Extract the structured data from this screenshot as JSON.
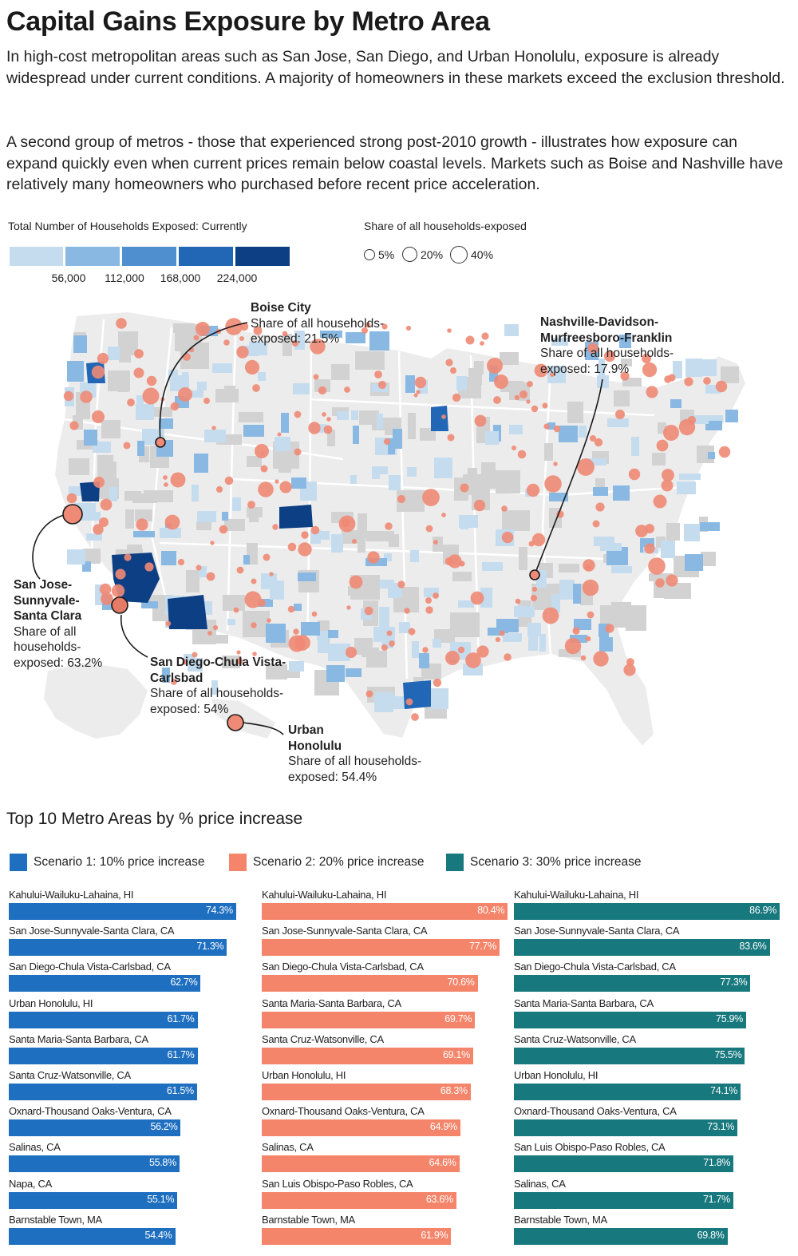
{
  "title": "Capital Gains Exposure by Metro Area",
  "intro": [
    "In high-cost metropolitan areas such as San Jose, San Diego, and Urban Honolulu, exposure is already widespread under current conditions. A majority of homeowners in these markets exceed the exclusion threshold.",
    "A second group of metros - those that experienced strong post-2010 growth - illustrates how exposure can expand quickly even when current prices remain below coastal levels. Markets such as Boise and Nashville have relatively many homeowners who purchased before recent price acceleration."
  ],
  "colors": {
    "scale": [
      "#c5dcef",
      "#89b9e2",
      "#4f8fcf",
      "#2266b6",
      "#0d3f85"
    ],
    "bubble": "#ef8a76",
    "scenario1": "#1f6fc0",
    "scenario2": "#f4856a",
    "scenario3": "#17787e",
    "land": "#f0f0f0",
    "county_gray": "#d2d2d2"
  },
  "map_legend": {
    "color_title": "Total Number of Households Exposed: Currently",
    "color_ticks": [
      "56,000",
      "112,000",
      "168,000",
      "224,000"
    ],
    "size_title": "Share of all households-exposed",
    "size_labels": [
      "5%",
      "20%",
      "40%"
    ]
  },
  "annotations": {
    "boise": {
      "name": "Boise City",
      "label": "Share of all households-exposed: 21.5%"
    },
    "nashville": {
      "name": "Nashville-Davidson-Murfreesboro-Franklin",
      "label": "Share of all households-exposed: 17.9%"
    },
    "sanjose": {
      "name": "San Jose-Sunnyvale-Santa Clara",
      "label": "Share of all households-exposed: 63.2%"
    },
    "sandiego": {
      "name": "San Diego-Chula Vista-Carlsbad",
      "label": "Share of all households-exposed: 54%"
    },
    "honolulu": {
      "name": "Urban Honolulu",
      "label": "Share of all households-exposed: 54.4%"
    }
  },
  "chart_data": {
    "type": "bar",
    "orientation": "horizontal",
    "title": "Top 10 Metro Areas by % price increase",
    "xlim": [
      0,
      90
    ],
    "series": [
      {
        "name": "Scenario 1: 10% price increase",
        "categories": [
          "Kahului-Wailuku-Lahaina, HI",
          "San Jose-Sunnyvale-Santa Clara, CA",
          "San Diego-Chula Vista-Carlsbad, CA",
          "Urban Honolulu, HI",
          "Santa Maria-Santa Barbara, CA",
          "Santa Cruz-Watsonville, CA",
          "Oxnard-Thousand Oaks-Ventura, CA",
          "Salinas, CA",
          "Napa, CA",
          "Barnstable Town, MA"
        ],
        "values": [
          74.3,
          71.3,
          62.7,
          61.7,
          61.7,
          61.5,
          56.2,
          55.8,
          55.1,
          54.4
        ],
        "labels": [
          "74.3%",
          "71.3%",
          "62.7%",
          "61.7%",
          "61.7%",
          "61.5%",
          "56.2%",
          "55.8%",
          "55.1%",
          "54.4%"
        ]
      },
      {
        "name": "Scenario 2: 20% price increase",
        "categories": [
          "Kahului-Wailuku-Lahaina, HI",
          "San Jose-Sunnyvale-Santa Clara, CA",
          "San Diego-Chula Vista-Carlsbad, CA",
          "Santa Maria-Santa Barbara, CA",
          "Santa Cruz-Watsonville, CA",
          "Urban Honolulu, HI",
          "Oxnard-Thousand Oaks-Ventura, CA",
          "Salinas, CA",
          "San Luis Obispo-Paso Robles, CA",
          "Barnstable Town, MA"
        ],
        "values": [
          80.4,
          77.7,
          70.6,
          69.7,
          69.1,
          68.3,
          64.9,
          64.6,
          63.6,
          61.9
        ],
        "labels": [
          "80.4%",
          "77.7%",
          "70.6%",
          "69.7%",
          "69.1%",
          "68.3%",
          "64.9%",
          "64.6%",
          "63.6%",
          "61.9%"
        ]
      },
      {
        "name": "Scenario 3: 30% price increase",
        "categories": [
          "Kahului-Wailuku-Lahaina, HI",
          "San Jose-Sunnyvale-Santa Clara, CA",
          "San Diego-Chula Vista-Carlsbad, CA",
          "Santa Maria-Santa Barbara, CA",
          "Santa Cruz-Watsonville, CA",
          "Urban Honolulu, HI",
          "Oxnard-Thousand Oaks-Ventura, CA",
          "San Luis Obispo-Paso Robles, CA",
          "Salinas, CA",
          "Barnstable Town, MA"
        ],
        "values": [
          86.9,
          83.6,
          77.3,
          75.9,
          75.5,
          74.1,
          73.1,
          71.8,
          71.7,
          69.8
        ],
        "labels": [
          "86.9%",
          "83.6%",
          "77.3%",
          "75.9%",
          "75.5%",
          "74.1%",
          "73.1%",
          "71.8%",
          "71.7%",
          "69.8%"
        ]
      }
    ]
  }
}
